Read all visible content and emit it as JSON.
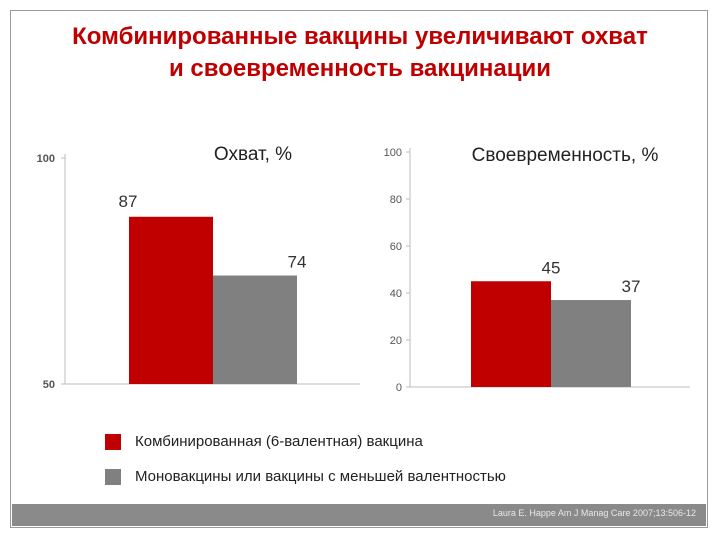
{
  "title_line1": "Комбинированные вакцины увеличивают охват",
  "title_line2": "и своевременность вакцинации",
  "colors": {
    "combined": "#c00000",
    "mono": "#808080",
    "title": "#c00000"
  },
  "chart_data": [
    {
      "type": "bar",
      "title": "Охват, %",
      "categories": [
        "Комбинированная (6-валентная) вакцина",
        "Моновакцины или вакцины с меньшей валентностью"
      ],
      "values": [
        87,
        74
      ],
      "data_labels": [
        "87",
        "74"
      ],
      "ylim": [
        50,
        100
      ],
      "yticks": [
        "50",
        "100"
      ],
      "ytick_values": [
        50,
        100
      ],
      "xlabel": "",
      "ylabel": ""
    },
    {
      "type": "bar",
      "title": "Своевременность, %",
      "categories": [
        "Комбинированная (6-валентная) вакцина",
        "Моновакцины или вакцины с меньшей валентностью"
      ],
      "values": [
        45,
        37
      ],
      "data_labels": [
        "45",
        "37"
      ],
      "ylim": [
        0,
        100
      ],
      "yticks": [
        "0",
        "20",
        "40",
        "60",
        "80",
        "100"
      ],
      "ytick_values": [
        0,
        20,
        40,
        60,
        80,
        100
      ],
      "xlabel": "",
      "ylabel": ""
    }
  ],
  "legend": [
    {
      "label": "Комбинированная (6-валентная) вакцина",
      "color": "#c00000"
    },
    {
      "label": "Моновакцины или вакцины с меньшей валентностью",
      "color": "#808080"
    }
  ],
  "footer": {
    "citation": "Laura E. Happe Am J Manag Care 2007;13:506-12"
  }
}
